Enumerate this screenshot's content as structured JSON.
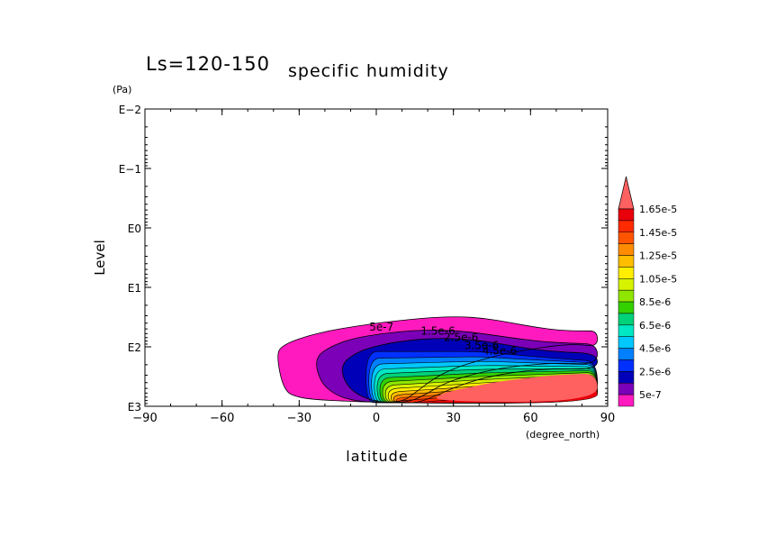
{
  "chart_data": {
    "type": "contour",
    "title_prefix": "Ls=120-150",
    "title": "specific humidity",
    "xlabel": "latitude",
    "xunit": "(degree_north)",
    "ylabel": "Level",
    "yunit": "(Pa)",
    "xlim": [
      -90,
      90
    ],
    "xticks": [
      -90,
      -60,
      -30,
      0,
      30,
      60,
      90
    ],
    "xtick_labels": [
      "−90",
      "−60",
      "−30",
      "0",
      "30",
      "60",
      "90"
    ],
    "yscale": "log",
    "yticks": [
      0.01,
      0.1,
      1,
      10,
      100,
      1000
    ],
    "ytick_labels": [
      "E−2",
      "E−1",
      "E0",
      "E1",
      "E2",
      "E3"
    ],
    "contour_labels": [
      "5e-7",
      "1.5e-6",
      "2.5e-6",
      "3.5e-6",
      "4.5e-6"
    ],
    "colorbar": {
      "labels": [
        "1.65e-5",
        "1.45e-5",
        "1.25e-5",
        "1.05e-5",
        "8.5e-6",
        "6.5e-6",
        "4.5e-6",
        "2.5e-6",
        "5e-7"
      ],
      "levels": [
        1.65e-05,
        1.55e-05,
        1.45e-05,
        1.35e-05,
        1.25e-05,
        1.15e-05,
        1.05e-05,
        9.5e-06,
        8.5e-06,
        7.5e-06,
        6.5e-06,
        5.5e-06,
        4.5e-06,
        3.5e-06,
        2.5e-06,
        1.5e-06,
        5e-07
      ],
      "colors": [
        "#e8000b",
        "#ff2a00",
        "#ff5500",
        "#ff8c00",
        "#ffbd00",
        "#ffee00",
        "#d6f200",
        "#8fe600",
        "#33d100",
        "#00d27a",
        "#00e8c4",
        "#00c8ff",
        "#0080ff",
        "#0030ff",
        "#0000b8",
        "#7b00b8",
        "#ff1abf"
      ],
      "over_color": "#ff6060"
    },
    "fields": [
      {
        "min_level": "5e-7",
        "color": "#ff1abf",
        "lat": [
          -39,
          -36,
          -28,
          -18,
          -8,
          2,
          12,
          22,
          32,
          42,
          52,
          62,
          72,
          80,
          86,
          86,
          78,
          70,
          60,
          50,
          40,
          30,
          22,
          15,
          10,
          -2,
          -12,
          -22,
          -30,
          -36
        ],
        "level": [
          130,
          92,
          68,
          53,
          45,
          39,
          35,
          32,
          31,
          33,
          39,
          47,
          53,
          54,
          54,
          100,
          90,
          95,
          110,
          130,
          170,
          230,
          350,
          600,
          850,
          850,
          820,
          780,
          720,
          560
        ]
      },
      {
        "min_level": "1.5e-6",
        "color": "#7b00b8",
        "lat": [
          -24,
          -17,
          -9,
          2,
          14,
          26,
          36,
          46,
          56,
          66,
          76,
          86,
          86,
          70,
          50,
          36,
          26,
          18,
          12,
          2,
          -8,
          -16,
          -22
        ],
        "level": [
          150,
          95,
          72,
          60,
          53,
          52,
          56,
          64,
          74,
          83,
          87,
          90,
          200,
          185,
          220,
          300,
          420,
          680,
          860,
          860,
          820,
          650,
          380
        ]
      },
      {
        "min_level": "2.5e-6",
        "color": "#0000b8",
        "lat": [
          -14,
          -7,
          2,
          12,
          22,
          32,
          42,
          52,
          62,
          72,
          86,
          86,
          70,
          55,
          42,
          32,
          22,
          16,
          10,
          2,
          -6,
          -12
        ],
        "level": [
          200,
          118,
          92,
          78,
          72,
          73,
          80,
          95,
          112,
          122,
          130,
          240,
          230,
          260,
          330,
          450,
          700,
          870,
          880,
          860,
          700,
          430
        ]
      }
    ],
    "surface": {
      "lat": [
        -4,
        9,
        14,
        20,
        26,
        32,
        40,
        48,
        56,
        64,
        72,
        80,
        86
      ],
      "level": [
        870,
        900,
        860,
        760,
        630,
        520,
        420,
        360,
        320,
        300,
        285,
        270,
        265
      ]
    },
    "high_region": {
      "lat": [
        25,
        35,
        45,
        55,
        65,
        75,
        86,
        86,
        22
      ],
      "level": [
        610,
        490,
        400,
        350,
        310,
        290,
        280,
        840,
        840
      ]
    }
  }
}
